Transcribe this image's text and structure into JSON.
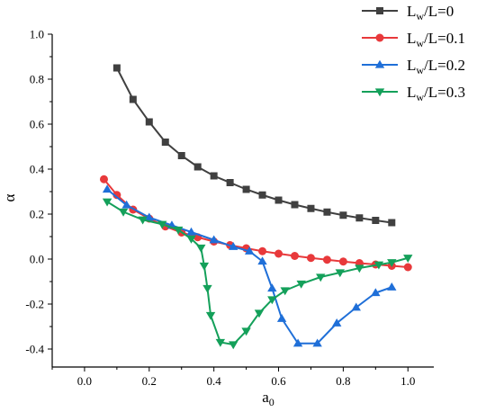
{
  "chart_data": {
    "type": "line",
    "xlabel": "a",
    "xlabel_sub": "0",
    "ylabel": "α",
    "xlim": [
      -0.1,
      1.08
    ],
    "ylim": [
      -0.48,
      1.0
    ],
    "xticks": [
      0.0,
      0.2,
      0.4,
      0.6,
      0.8,
      1.0
    ],
    "xtick_labels": [
      "0.0",
      "0.2",
      "0.4",
      "0.6",
      "0.8",
      "1.0"
    ],
    "yticks": [
      -0.4,
      -0.2,
      0.0,
      0.2,
      0.4,
      0.6,
      0.8,
      1.0
    ],
    "ytick_labels": [
      "-0.4",
      "-0.2",
      "0.0",
      "0.2",
      "0.4",
      "0.6",
      "0.8",
      "1.0"
    ],
    "grid": false,
    "legend_position": "top-right, outside plot",
    "series": [
      {
        "name": "Lw/L=0",
        "legend_main": "L",
        "legend_sub": "w",
        "legend_rest": "/L=0",
        "color": "#404040",
        "marker": "square",
        "x": [
          0.1,
          0.15,
          0.2,
          0.25,
          0.3,
          0.35,
          0.4,
          0.45,
          0.5,
          0.55,
          0.6,
          0.65,
          0.7,
          0.75,
          0.8,
          0.85,
          0.9,
          0.95
        ],
        "y": [
          0.85,
          0.71,
          0.61,
          0.52,
          0.46,
          0.41,
          0.37,
          0.34,
          0.31,
          0.285,
          0.262,
          0.242,
          0.225,
          0.209,
          0.195,
          0.183,
          0.172,
          0.162
        ]
      },
      {
        "name": "Lw/L=0.1",
        "legend_main": "L",
        "legend_sub": "w",
        "legend_rest": "/L=0.1",
        "color": "#e8393b",
        "marker": "circle",
        "x": [
          0.06,
          0.1,
          0.15,
          0.2,
          0.25,
          0.3,
          0.35,
          0.4,
          0.45,
          0.5,
          0.55,
          0.6,
          0.65,
          0.7,
          0.75,
          0.8,
          0.85,
          0.9,
          0.95,
          1.0
        ],
        "y": [
          0.355,
          0.285,
          0.22,
          0.18,
          0.145,
          0.118,
          0.097,
          0.078,
          0.062,
          0.048,
          0.035,
          0.024,
          0.014,
          0.005,
          -0.003,
          -0.011,
          -0.018,
          -0.024,
          -0.03,
          -0.036
        ]
      },
      {
        "name": "Lw/L=0.2",
        "legend_main": "L",
        "legend_sub": "w",
        "legend_rest": "/L=0.2",
        "color": "#1f6fd8",
        "marker": "triangle-up",
        "x": [
          0.07,
          0.13,
          0.2,
          0.27,
          0.33,
          0.4,
          0.46,
          0.51,
          0.55,
          0.58,
          0.61,
          0.66,
          0.72,
          0.78,
          0.84,
          0.9,
          0.95
        ],
        "y": [
          0.31,
          0.24,
          0.185,
          0.15,
          0.12,
          0.085,
          0.055,
          0.035,
          -0.01,
          -0.13,
          -0.265,
          -0.375,
          -0.375,
          -0.285,
          -0.215,
          -0.15,
          -0.125
        ]
      },
      {
        "name": "Lw/L=0.3",
        "legend_main": "L",
        "legend_sub": "w",
        "legend_rest": "/L=0.3",
        "color": "#14a05a",
        "marker": "triangle-down",
        "x": [
          0.07,
          0.12,
          0.18,
          0.24,
          0.29,
          0.33,
          0.36,
          0.37,
          0.38,
          0.39,
          0.42,
          0.46,
          0.5,
          0.54,
          0.58,
          0.62,
          0.67,
          0.73,
          0.79,
          0.85,
          0.91,
          0.95,
          1.0
        ],
        "y": [
          0.255,
          0.21,
          0.175,
          0.155,
          0.13,
          0.09,
          0.05,
          -0.03,
          -0.13,
          -0.25,
          -0.37,
          -0.38,
          -0.32,
          -0.24,
          -0.18,
          -0.14,
          -0.11,
          -0.08,
          -0.06,
          -0.04,
          -0.025,
          -0.015,
          0.005
        ]
      }
    ]
  }
}
